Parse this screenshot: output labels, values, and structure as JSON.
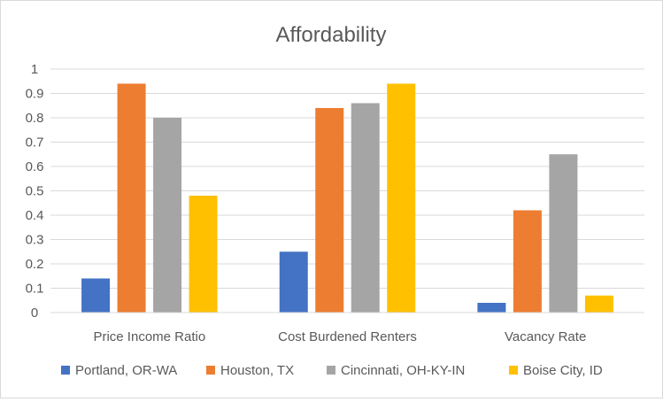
{
  "chart_data": {
    "type": "bar",
    "title": "Affordability",
    "xlabel": "",
    "ylabel": "",
    "ylim": [
      0,
      1
    ],
    "yticks": [
      "0",
      "0.1",
      "0.2",
      "0.3",
      "0.4",
      "0.5",
      "0.6",
      "0.7",
      "0.8",
      "0.9",
      "1"
    ],
    "grid": true,
    "legend_position": "bottom",
    "categories": [
      "Price Income Ratio",
      "Cost Burdened Renters",
      "Vacancy Rate"
    ],
    "series": [
      {
        "name": "Portland, OR-WA",
        "color": "#4472c4",
        "values": [
          0.14,
          0.25,
          0.04
        ]
      },
      {
        "name": "Houston, TX",
        "color": "#ed7d31",
        "values": [
          0.94,
          0.84,
          0.42
        ]
      },
      {
        "name": "Cincinnati, OH-KY-IN",
        "color": "#a5a5a5",
        "values": [
          0.8,
          0.86,
          0.65
        ]
      },
      {
        "name": "Boise City, ID",
        "color": "#ffc000",
        "values": [
          0.48,
          0.94,
          0.07
        ]
      }
    ]
  }
}
